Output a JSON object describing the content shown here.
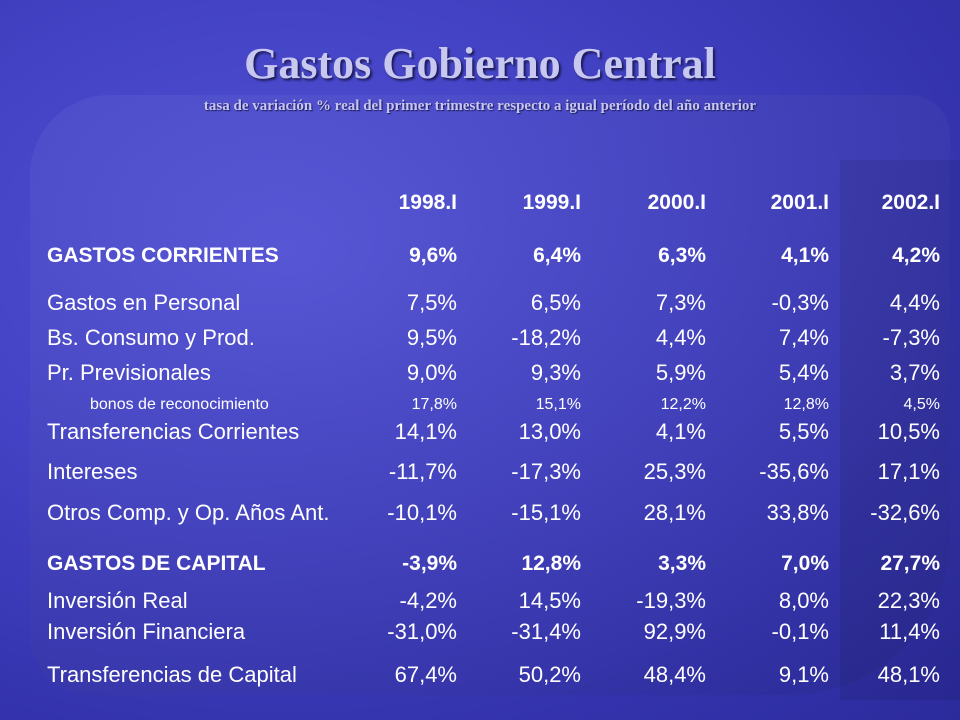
{
  "title": "Gastos Gobierno Central",
  "subtitle": "tasa de variación % real  del primer trimestre  respecto  a igual período del año anterior",
  "years": [
    "1998.I",
    "1999.I",
    "2000.I",
    "2001.I",
    "2002.I"
  ],
  "rows": [
    {
      "label": "GASTOS CORRIENTES",
      "values": [
        "9,6%",
        "6,4%",
        "6,3%",
        "4,1%",
        "4,2%"
      ]
    },
    {
      "label": "Gastos en Personal",
      "values": [
        "7,5%",
        "6,5%",
        "7,3%",
        "-0,3%",
        "4,4%"
      ]
    },
    {
      "label": "Bs. Consumo y Prod.",
      "values": [
        "9,5%",
        "-18,2%",
        "4,4%",
        "7,4%",
        "-7,3%"
      ]
    },
    {
      "label": "Pr. Previsionales",
      "values": [
        "9,0%",
        "9,3%",
        "5,9%",
        "5,4%",
        "3,7%"
      ]
    },
    {
      "label": "bonos de reconocimiento",
      "values": [
        "17,8%",
        "15,1%",
        "12,2%",
        "12,8%",
        "4,5%"
      ]
    },
    {
      "label": "Transferencias Corrientes",
      "values": [
        "14,1%",
        "13,0%",
        "4,1%",
        "5,5%",
        "10,5%"
      ]
    },
    {
      "label": "Intereses",
      "values": [
        "-11,7%",
        "-17,3%",
        "25,3%",
        "-35,6%",
        "17,1%"
      ]
    },
    {
      "label": "Otros Comp. y Op. Años Ant.",
      "values": [
        "-10,1%",
        "-15,1%",
        "28,1%",
        "33,8%",
        "-32,6%"
      ]
    },
    {
      "label": "GASTOS DE CAPITAL",
      "values": [
        "-3,9%",
        "12,8%",
        "3,3%",
        "7,0%",
        "27,7%"
      ]
    },
    {
      "label": "Inversión Real",
      "values": [
        "-4,2%",
        "14,5%",
        "-19,3%",
        "8,0%",
        "22,3%"
      ]
    },
    {
      "label": "Inversión Financiera",
      "values": [
        "-31,0%",
        "-31,4%",
        "92,9%",
        "-0,1%",
        "11,4%"
      ]
    },
    {
      "label": "Transferencias de Capital",
      "values": [
        "67,4%",
        "50,2%",
        "48,4%",
        "9,1%",
        "48,1%"
      ]
    }
  ]
}
